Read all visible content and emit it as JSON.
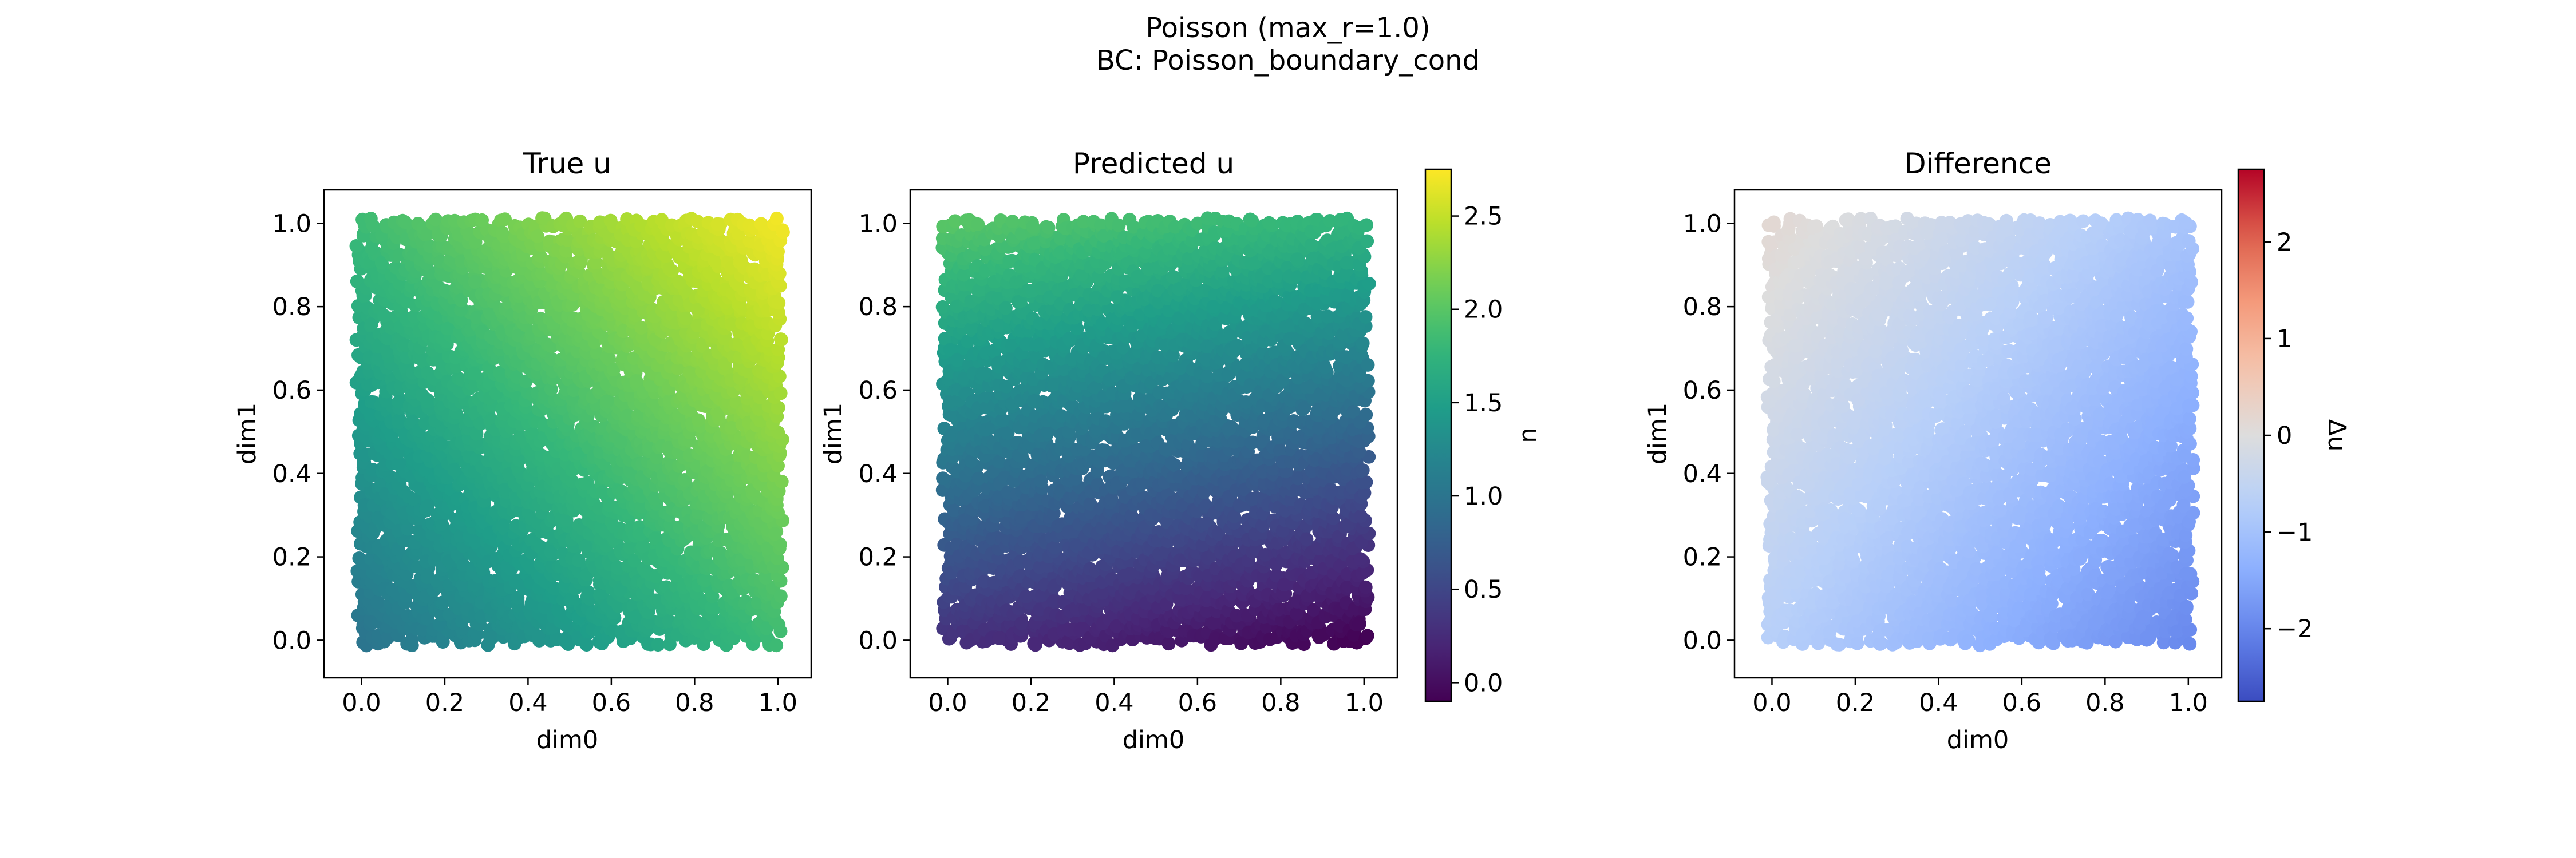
{
  "figure": {
    "title_line1": "Poisson (max_r=1.0)",
    "title_line2": "BC: Poisson_boundary_cond"
  },
  "chart_data": [
    {
      "type": "scatter",
      "title": "True u",
      "xlabel": "dim0",
      "ylabel": "dim1",
      "xlim": [
        -0.09,
        1.08
      ],
      "ylim": [
        -0.09,
        1.08
      ],
      "xticks": [
        "0.0",
        "0.2",
        "0.4",
        "0.6",
        "0.8",
        "1.0"
      ],
      "yticks": [
        "0.0",
        "0.2",
        "0.4",
        "0.6",
        "0.8",
        "1.0"
      ],
      "field": "u = 1 + (x + y) * ~0.85 (approx.)",
      "corner_values": {
        "x0_y0": 1.0,
        "x1_y0": 1.85,
        "x0_y1": 1.85,
        "x1_y1": 2.7
      },
      "colormap": "viridis",
      "color_range": [
        -0.1,
        2.75
      ]
    },
    {
      "type": "scatter",
      "title": "Predicted u",
      "xlabel": "dim0",
      "ylabel": "dim1",
      "xlim": [
        -0.09,
        1.08
      ],
      "ylim": [
        -0.09,
        1.08
      ],
      "xticks": [
        "0.0",
        "0.2",
        "0.4",
        "0.6",
        "0.8",
        "1.0"
      ],
      "yticks": [
        "0.0",
        "0.2",
        "0.4",
        "0.6",
        "0.8",
        "1.0"
      ],
      "corner_values": {
        "x0_y0": 0.3,
        "x1_y0": -0.1,
        "x0_y1": 2.0,
        "x1_y1": 1.75
      },
      "colormap": "viridis",
      "color_range": [
        -0.1,
        2.75
      ],
      "colorbar": {
        "label": "u",
        "ticks": [
          "0.0",
          "0.5",
          "1.0",
          "1.5",
          "2.0",
          "2.5"
        ],
        "tick_values": [
          0.0,
          0.5,
          1.0,
          1.5,
          2.0,
          2.5
        ]
      }
    },
    {
      "type": "scatter",
      "title": "Difference",
      "xlabel": "dim0",
      "ylabel": "dim1",
      "xlim": [
        -0.09,
        1.08
      ],
      "ylim": [
        -0.09,
        1.08
      ],
      "xticks": [
        "0.0",
        "0.2",
        "0.4",
        "0.6",
        "0.8",
        "1.0"
      ],
      "yticks": [
        "0.0",
        "0.2",
        "0.4",
        "0.6",
        "0.8",
        "1.0"
      ],
      "corner_values": {
        "x0_y0": -0.7,
        "x1_y0": -1.95,
        "x0_y1": 0.15,
        "x1_y1": -0.95
      },
      "colormap": "coolwarm",
      "color_range": [
        -2.75,
        2.75
      ],
      "colorbar": {
        "label": "Δu",
        "ticks": [
          "−2",
          "−1",
          "0",
          "1",
          "2"
        ],
        "tick_values": [
          -2,
          -1,
          0,
          1,
          2
        ]
      }
    }
  ]
}
